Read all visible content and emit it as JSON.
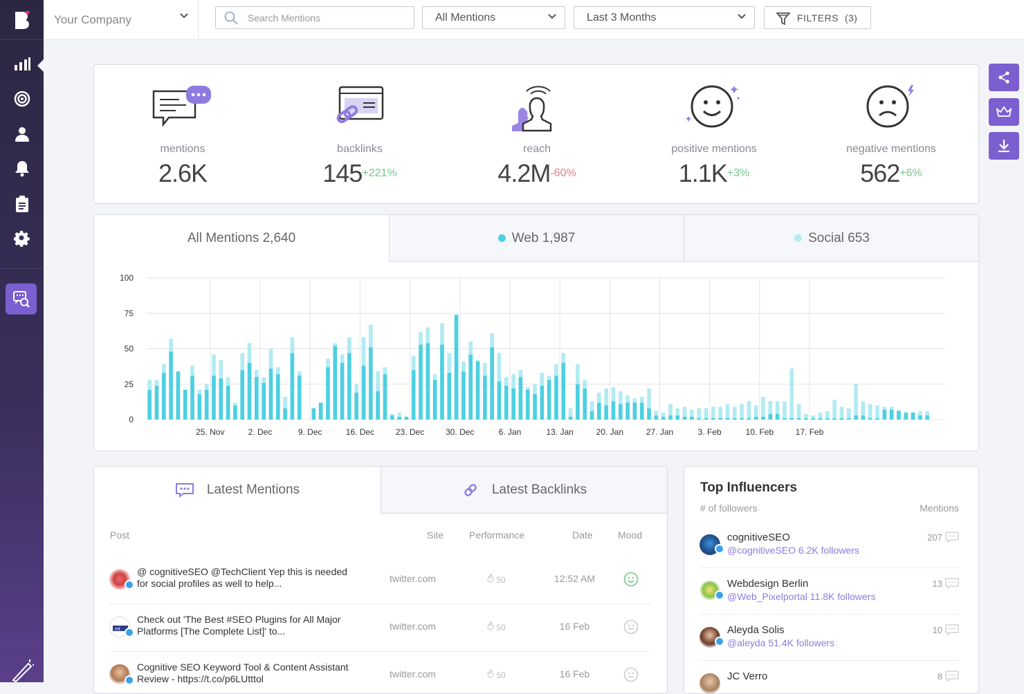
{
  "header": {
    "company": "Your Company",
    "search_placeholder": "Search Mentions",
    "mention_filter": "All Mentions",
    "date_range": "Last 3 Months",
    "filters_label": "FILTERS",
    "filters_count": "(3)"
  },
  "sidebar": {
    "items": [
      {
        "icon": "bar-chart-icon"
      },
      {
        "icon": "target-icon"
      },
      {
        "icon": "user-icon"
      },
      {
        "icon": "bell-icon"
      },
      {
        "icon": "clipboard-icon"
      },
      {
        "icon": "gear-icon"
      }
    ],
    "active": "mentions-search-icon"
  },
  "stats": [
    {
      "label": "mentions",
      "value": "2.6K",
      "change": "",
      "dir": ""
    },
    {
      "label": "backlinks",
      "value": "145",
      "change": "+221%",
      "dir": "up"
    },
    {
      "label": "reach",
      "value": "4.2M",
      "change": "-60%",
      "dir": "down"
    },
    {
      "label": "positive mentions",
      "value": "1.1K",
      "change": "+3%",
      "dir": "up"
    },
    {
      "label": "negative mentions",
      "value": "562",
      "change": "+6%",
      "dir": "up"
    }
  ],
  "tabs": [
    {
      "label": "All Mentions 2,640"
    },
    {
      "label": "Web 1,987"
    },
    {
      "label": "Social 653"
    }
  ],
  "colors": {
    "accent": "#7b5fd0",
    "web": "#4dd0e1",
    "social": "#b2ebf2",
    "up": "#74c98a",
    "down": "#f07b7b"
  },
  "chart_data": {
    "type": "bar",
    "stacked": true,
    "ylim": [
      0,
      100
    ],
    "yticks": [
      "0",
      "25",
      "50",
      "75",
      "100"
    ],
    "xticks": [
      "25. Nov",
      "2. Dec",
      "9. Dec",
      "16. Dec",
      "23. Dec",
      "30. Dec",
      "6. Jan",
      "13. Jan",
      "20. Jan",
      "27. Jan",
      "3. Feb",
      "10. Feb",
      "17. Feb"
    ],
    "grid": true,
    "series": [
      {
        "name": "Web",
        "values": [
          21,
          24,
          33,
          48,
          34,
          21,
          31,
          18,
          21,
          31,
          29,
          24,
          10,
          35,
          40,
          30,
          26,
          36,
          32,
          8,
          47,
          31,
          0,
          8,
          12,
          37,
          52,
          40,
          47,
          19,
          38,
          51,
          20,
          32,
          3,
          2,
          2,
          35,
          53,
          54,
          28,
          53,
          33,
          74,
          34,
          46,
          41,
          31,
          51,
          27,
          24,
          22,
          30,
          21,
          18,
          24,
          28,
          31,
          40,
          2,
          25,
          22,
          6,
          12,
          10,
          13,
          11,
          12,
          12,
          12,
          8,
          3,
          2,
          3,
          3,
          2,
          2,
          1,
          1,
          1,
          1,
          1,
          1,
          1,
          1,
          2,
          2,
          4,
          4,
          1,
          1,
          1,
          1,
          1,
          1,
          1,
          1,
          1,
          1,
          3,
          3,
          1,
          1,
          7,
          7,
          6,
          5,
          5,
          3,
          3,
          0,
          0
        ]
      },
      {
        "name": "Social",
        "values": [
          7,
          4,
          6,
          9,
          0,
          0,
          7,
          3,
          4,
          15,
          13,
          6,
          2,
          12,
          14,
          5,
          4,
          14,
          5,
          8,
          11,
          3,
          0,
          0,
          0,
          6,
          2,
          6,
          11,
          6,
          20,
          16,
          14,
          5,
          1,
          3,
          0,
          10,
          9,
          11,
          4,
          15,
          14,
          0,
          7,
          9,
          1,
          9,
          10,
          20,
          6,
          10,
          5,
          2,
          7,
          9,
          3,
          8,
          7,
          6,
          14,
          6,
          7,
          7,
          12,
          10,
          9,
          5,
          3,
          4,
          14,
          3,
          3,
          8,
          5,
          7,
          5,
          7,
          7,
          8,
          8,
          10,
          8,
          10,
          12,
          8,
          14,
          9,
          9,
          12,
          35,
          10,
          3,
          2,
          4,
          5,
          13,
          8,
          7,
          22,
          10,
          10,
          9,
          2,
          2,
          1,
          0,
          0,
          3,
          3,
          0,
          0
        ]
      }
    ]
  },
  "latest": {
    "tab_mentions": "Latest Mentions",
    "tab_backlinks": "Latest Backlinks",
    "columns": [
      "Post",
      "Site",
      "Performance",
      "Date",
      "Mood"
    ],
    "rows": [
      {
        "text": "@ cognitiveSEO @TechClient Yep this is needed for social profiles as well to help...",
        "site": "twitter.com",
        "perf": "50",
        "date": "12:52 AM",
        "mood": "positive"
      },
      {
        "text": "Check out 'The Best #SEO Plugins for All Major Platforms [The Complete List]' to...",
        "site": "twitter.com",
        "perf": "50",
        "date": "16 Feb",
        "mood": "neutral"
      },
      {
        "text": "Cognitive SEO Keyword Tool & Content Assistant Review - https://t.co/p6LUtttol",
        "site": "twitter.com",
        "perf": "50",
        "date": "16 Feb",
        "mood": "neutral"
      }
    ]
  },
  "influencers": {
    "title": "Top Influencers",
    "sub_left": "# of followers",
    "sub_right": "Mentions",
    "items": [
      {
        "name": "cognitiveSEO",
        "handle": "@cognitiveSEO 6.2K followers",
        "count": "207"
      },
      {
        "name": "Webdesign Berlin",
        "handle": "@Web_Pixelportal 11.8K followers",
        "count": "13"
      },
      {
        "name": "Aleyda Solis",
        "handle": "@aleyda 51.4K followers",
        "count": "10"
      },
      {
        "name": "JC Verro",
        "handle": "",
        "count": "8"
      }
    ]
  }
}
